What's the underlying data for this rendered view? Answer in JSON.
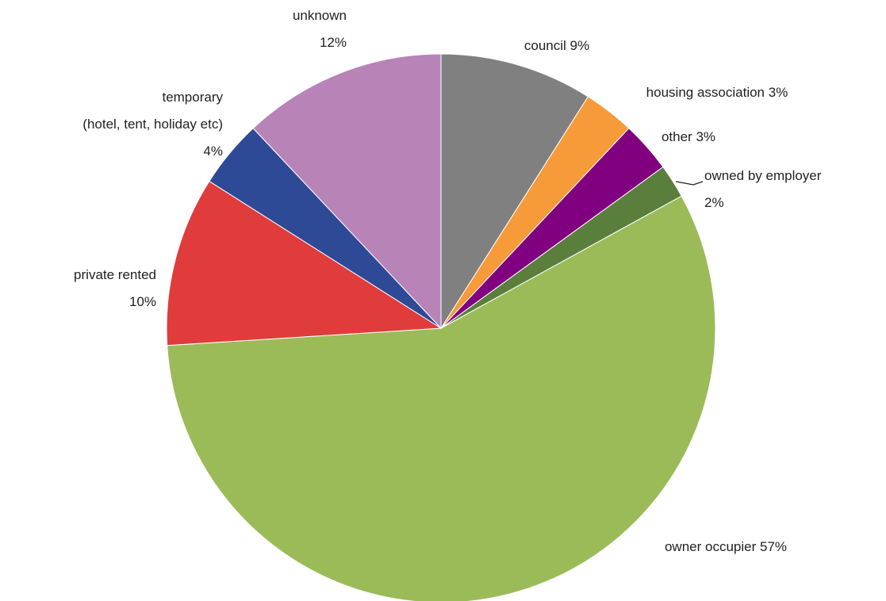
{
  "chart_data": {
    "type": "pie",
    "categories": [
      "council",
      "housing association",
      "other",
      "owned by employer",
      "owner occupier",
      "private rented",
      "temporary\n(hotel, tent, holiday etc)",
      "unknown"
    ],
    "values": [
      9,
      3,
      3,
      2,
      57,
      10,
      4,
      12
    ],
    "value_labels": [
      "9%",
      "3%",
      "3%",
      "2%",
      "57%",
      "10%",
      "4%",
      "12%"
    ],
    "colors": [
      "#808080",
      "#f79a3a",
      "#800080",
      "#5a7f3c",
      "#9bbb59",
      "#e03c3c",
      "#2e4a96",
      "#b884b8"
    ]
  }
}
